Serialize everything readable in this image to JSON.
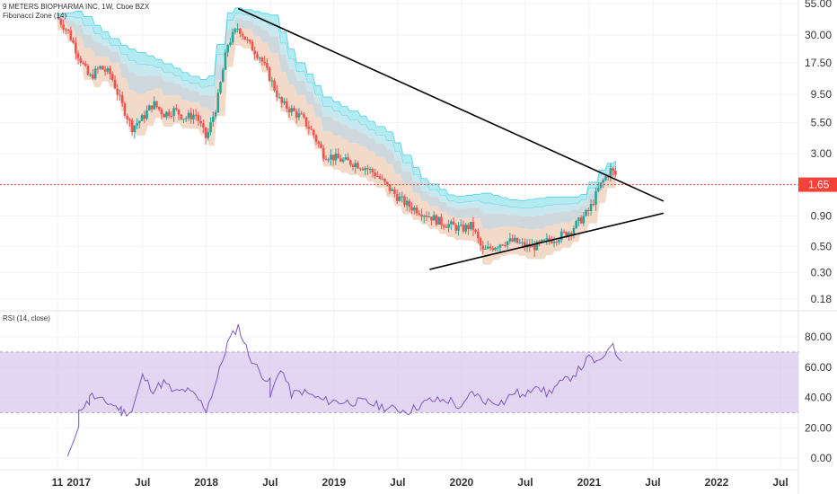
{
  "header": {
    "symbol_title": "9 METERS BIOPHARMA INC, 1W, Cboe BZX",
    "indicator": "Fibonacci Zone (14)"
  },
  "rsi_panel": {
    "title": "RSI (14, close)"
  },
  "colors": {
    "up": "#26a69a",
    "down": "#ef5350",
    "upper_zone": "#b2ebf2",
    "upper_zone_stroke": "#4dd0e1",
    "mid_zone": "#cfd8dc",
    "lower_zone": "#f3d9c8",
    "rsi_line": "#7e57c2",
    "rsi_band": "#d7c4ec",
    "price_line": "#f44336",
    "trendline": "#000000"
  },
  "chart_data": [
    {
      "type": "candlestick",
      "y_scale": "log",
      "y_ticks": [
        "55.00",
        "30.00",
        "17.50",
        "9.50",
        "5.50",
        "3.00",
        "1.65",
        "0.90",
        "0.50",
        "0.30",
        "0.18"
      ],
      "y_tick_values": [
        55,
        30,
        17.5,
        9.5,
        5.5,
        3.0,
        1.65,
        0.9,
        0.5,
        0.3,
        0.18
      ],
      "current_price": 1.65,
      "current_price_label": "1.65",
      "x_ticks": [
        "11",
        "2017",
        "Jul",
        "2018",
        "Jul",
        "2019",
        "Jul",
        "2020",
        "Jul",
        "2021",
        "Jul",
        "2022",
        "Jul"
      ],
      "x_tick_dates": [
        "2016-11",
        "2017-01",
        "2017-07",
        "2018-01",
        "2018-07",
        "2019-01",
        "2019-07",
        "2020-01",
        "2020-07",
        "2021-01",
        "2021-07",
        "2022-01",
        "2022-07"
      ],
      "price_path": [
        [
          "2016-11",
          42
        ],
        [
          "2016-12",
          32
        ],
        [
          "2017-01",
          20
        ],
        [
          "2017-02",
          13
        ],
        [
          "2017-03",
          16
        ],
        [
          "2017-04",
          14
        ],
        [
          "2017-05",
          8
        ],
        [
          "2017-06",
          5
        ],
        [
          "2017-07",
          6
        ],
        [
          "2017-08",
          8
        ],
        [
          "2017-09",
          6.5
        ],
        [
          "2017-10",
          7
        ],
        [
          "2017-11",
          6
        ],
        [
          "2017-12",
          6.5
        ],
        [
          "2018-01",
          4
        ],
        [
          "2018-02",
          8
        ],
        [
          "2018-03",
          25
        ],
        [
          "2018-04",
          35
        ],
        [
          "2018-05",
          25
        ],
        [
          "2018-06",
          20
        ],
        [
          "2018-07",
          13
        ],
        [
          "2018-08",
          8
        ],
        [
          "2018-09",
          7
        ],
        [
          "2018-10",
          6
        ],
        [
          "2018-11",
          4.5
        ],
        [
          "2018-12",
          3
        ],
        [
          "2019-01",
          2.8
        ],
        [
          "2019-02",
          2.6
        ],
        [
          "2019-03",
          2.5
        ],
        [
          "2019-04",
          2.3
        ],
        [
          "2019-05",
          2.0
        ],
        [
          "2019-06",
          1.6
        ],
        [
          "2019-07",
          1.3
        ],
        [
          "2019-08",
          1.1
        ],
        [
          "2019-09",
          1.0
        ],
        [
          "2019-10",
          0.9
        ],
        [
          "2019-11",
          0.8
        ],
        [
          "2019-12",
          0.75
        ],
        [
          "2020-01",
          0.7
        ],
        [
          "2020-02",
          0.75
        ],
        [
          "2020-03",
          0.45
        ],
        [
          "2020-04",
          0.5
        ],
        [
          "2020-05",
          0.55
        ],
        [
          "2020-06",
          0.55
        ],
        [
          "2020-07",
          0.5
        ],
        [
          "2020-08",
          0.5
        ],
        [
          "2020-09",
          0.55
        ],
        [
          "2020-10",
          0.6
        ],
        [
          "2020-11",
          0.65
        ],
        [
          "2020-12",
          0.8
        ],
        [
          "2021-01",
          1.0
        ],
        [
          "2021-02",
          1.6
        ],
        [
          "2021-03",
          2.2
        ],
        [
          "2021-04",
          1.8
        ]
      ],
      "fib_upper_path": [
        [
          "2016-11",
          45
        ],
        [
          "2017-01",
          48
        ],
        [
          "2017-02",
          38
        ],
        [
          "2017-05",
          24
        ],
        [
          "2017-08",
          19
        ],
        [
          "2017-11",
          14
        ],
        [
          "2018-01",
          12
        ],
        [
          "2018-03",
          52
        ],
        [
          "2018-07",
          44
        ],
        [
          "2018-09",
          20
        ],
        [
          "2018-12",
          9
        ],
        [
          "2019-03",
          6.5
        ],
        [
          "2019-06",
          4.5
        ],
        [
          "2019-09",
          1.9
        ],
        [
          "2019-12",
          1.3
        ],
        [
          "2020-03",
          1.4
        ],
        [
          "2020-06",
          1.2
        ],
        [
          "2020-09",
          1.3
        ],
        [
          "2020-12",
          1.3
        ],
        [
          "2021-02",
          2.3
        ],
        [
          "2021-03",
          2.6
        ]
      ],
      "trendlines": [
        {
          "from": [
            "2018-04",
            50
          ],
          "to": [
            "2021-08",
            1.2
          ]
        },
        {
          "from": [
            "2019-10",
            0.32
          ],
          "to": [
            "2021-08",
            0.95
          ]
        }
      ]
    },
    {
      "type": "line",
      "series": [
        {
          "name": "RSI (14, close)",
          "values": []
        }
      ],
      "ylim": [
        -5,
        90
      ],
      "y_ticks": [
        "80.00",
        "60.00",
        "40.00",
        "20.00",
        "0.00"
      ],
      "y_tick_values": [
        80,
        60,
        40,
        20,
        0
      ],
      "band": [
        30,
        70
      ],
      "points": [
        [
          "2016-12",
          1
        ],
        [
          "2016-12",
          2
        ],
        [
          "2017-01",
          20
        ],
        [
          "2017-01",
          22
        ],
        [
          "2017-01",
          33
        ],
        [
          "2017-02",
          37
        ],
        [
          "2017-02",
          42
        ],
        [
          "2017-03",
          38
        ],
        [
          "2017-04",
          36
        ],
        [
          "2017-05",
          32
        ],
        [
          "2017-05",
          30
        ],
        [
          "2017-06",
          31
        ],
        [
          "2017-07",
          54
        ],
        [
          "2017-08",
          45
        ],
        [
          "2017-09",
          50
        ],
        [
          "2017-10",
          43
        ],
        [
          "2017-11",
          45
        ],
        [
          "2017-12",
          41
        ],
        [
          "2018-01",
          32
        ],
        [
          "2018-02",
          52
        ],
        [
          "2018-03",
          76
        ],
        [
          "2018-04",
          87
        ],
        [
          "2018-05",
          68
        ],
        [
          "2018-06",
          57
        ],
        [
          "2018-07",
          50
        ],
        [
          "2018-07",
          40
        ],
        [
          "2018-08",
          60
        ],
        [
          "2018-09",
          42
        ],
        [
          "2018-10",
          44
        ],
        [
          "2018-11",
          41
        ],
        [
          "2018-12",
          38
        ],
        [
          "2019-02",
          37
        ],
        [
          "2019-04",
          37
        ],
        [
          "2019-06",
          33
        ],
        [
          "2019-08",
          31
        ],
        [
          "2019-10",
          38
        ],
        [
          "2019-12",
          38
        ],
        [
          "2020-01",
          32
        ],
        [
          "2020-02",
          44
        ],
        [
          "2020-03",
          38
        ],
        [
          "2020-05",
          37
        ],
        [
          "2020-06",
          44
        ],
        [
          "2020-07",
          40
        ],
        [
          "2020-08",
          50
        ],
        [
          "2020-09",
          42
        ],
        [
          "2020-10",
          48
        ],
        [
          "2020-11",
          52
        ],
        [
          "2020-12",
          58
        ],
        [
          "2021-01",
          66
        ],
        [
          "2021-02",
          62
        ],
        [
          "2021-03",
          76
        ],
        [
          "2021-04",
          64
        ]
      ]
    }
  ]
}
